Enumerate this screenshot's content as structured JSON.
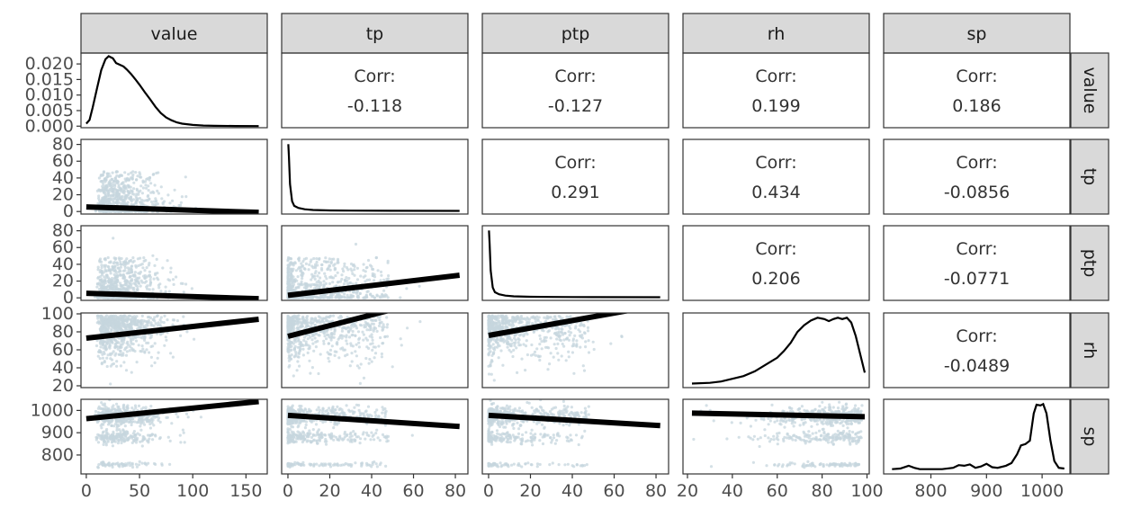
{
  "chart_data": {
    "type": "scatter-matrix",
    "variables": [
      "value",
      "tp",
      "ptp",
      "rh",
      "sp"
    ],
    "axes": {
      "value": {
        "range": [
          -5,
          170
        ],
        "ticks": [
          0,
          50,
          100,
          150
        ]
      },
      "tp": {
        "range": [
          -3,
          86
        ],
        "ticks": [
          0,
          20,
          40,
          60,
          80
        ]
      },
      "ptp": {
        "range": [
          -3,
          86
        ],
        "ticks": [
          0,
          20,
          40,
          60,
          80
        ]
      },
      "rh": {
        "range": [
          18,
          101
        ],
        "ticks": [
          20,
          40,
          60,
          80,
          100
        ]
      },
      "sp": {
        "range": [
          715,
          1050
        ],
        "ticks": [
          800,
          900,
          1000
        ]
      }
    },
    "density_y": {
      "value": {
        "range": [
          -0.0005,
          0.0235
        ],
        "ticks": [
          "0.000",
          "0.005",
          "0.010",
          "0.015",
          "0.020"
        ],
        "tick_values": [
          0,
          0.005,
          0.01,
          0.015,
          0.02
        ]
      }
    },
    "correlations": [
      {
        "row": "value",
        "col": "tp",
        "label": "Corr:",
        "value": "-0.118"
      },
      {
        "row": "value",
        "col": "ptp",
        "label": "Corr:",
        "value": "-0.127"
      },
      {
        "row": "value",
        "col": "rh",
        "label": "Corr:",
        "value": "0.199"
      },
      {
        "row": "value",
        "col": "sp",
        "label": "Corr:",
        "value": "0.186"
      },
      {
        "row": "tp",
        "col": "ptp",
        "label": "Corr:",
        "value": "0.291"
      },
      {
        "row": "tp",
        "col": "rh",
        "label": "Corr:",
        "value": "0.434"
      },
      {
        "row": "tp",
        "col": "sp",
        "label": "Corr:",
        "value": "-0.0856"
      },
      {
        "row": "ptp",
        "col": "rh",
        "label": "Corr:",
        "value": "0.206"
      },
      {
        "row": "ptp",
        "col": "sp",
        "label": "Corr:",
        "value": "-0.0771"
      },
      {
        "row": "rh",
        "col": "sp",
        "label": "Corr:",
        "value": "-0.0489"
      }
    ],
    "densities": {
      "value": [
        [
          0,
          0.0008
        ],
        [
          3,
          0.002
        ],
        [
          6,
          0.006
        ],
        [
          10,
          0.012
        ],
        [
          14,
          0.018
        ],
        [
          18,
          0.0215
        ],
        [
          21,
          0.0225
        ],
        [
          25,
          0.0218
        ],
        [
          28,
          0.0203
        ],
        [
          31,
          0.0198
        ],
        [
          35,
          0.0192
        ],
        [
          38,
          0.0182
        ],
        [
          42,
          0.0168
        ],
        [
          46,
          0.0151
        ],
        [
          50,
          0.0133
        ],
        [
          55,
          0.0109
        ],
        [
          60,
          0.0086
        ],
        [
          65,
          0.0062
        ],
        [
          70,
          0.0042
        ],
        [
          75,
          0.0028
        ],
        [
          80,
          0.0019
        ],
        [
          85,
          0.0012
        ],
        [
          90,
          0.0008
        ],
        [
          100,
          0.0004
        ],
        [
          110,
          0.0002
        ],
        [
          120,
          0.0001
        ],
        [
          140,
          5e-05
        ],
        [
          162,
          2e-05
        ]
      ],
      "tp": [
        [
          0.2,
          0.99
        ],
        [
          0.5,
          0.8
        ],
        [
          1,
          0.4
        ],
        [
          2,
          0.15
        ],
        [
          3,
          0.08
        ],
        [
          5,
          0.05
        ],
        [
          8,
          0.03
        ],
        [
          12,
          0.02
        ],
        [
          20,
          0.013
        ],
        [
          30,
          0.01
        ],
        [
          50,
          0.008
        ],
        [
          82,
          0.007
        ]
      ],
      "ptp": [
        [
          0.2,
          0.99
        ],
        [
          0.5,
          0.8
        ],
        [
          1,
          0.4
        ],
        [
          2,
          0.15
        ],
        [
          3,
          0.08
        ],
        [
          5,
          0.05
        ],
        [
          8,
          0.03
        ],
        [
          12,
          0.02
        ],
        [
          20,
          0.013
        ],
        [
          30,
          0.01
        ],
        [
          50,
          0.008
        ],
        [
          82,
          0.007
        ]
      ],
      "rh": [
        [
          22,
          0.02
        ],
        [
          30,
          0.03
        ],
        [
          35,
          0.05
        ],
        [
          40,
          0.09
        ],
        [
          45,
          0.13
        ],
        [
          50,
          0.2
        ],
        [
          55,
          0.3
        ],
        [
          60,
          0.4
        ],
        [
          63,
          0.5
        ],
        [
          66,
          0.62
        ],
        [
          69,
          0.78
        ],
        [
          72,
          0.88
        ],
        [
          75,
          0.95
        ],
        [
          78,
          0.99
        ],
        [
          81,
          0.97
        ],
        [
          83,
          0.94
        ],
        [
          85,
          0.97
        ],
        [
          87,
          0.99
        ],
        [
          89,
          0.97
        ],
        [
          91,
          0.99
        ],
        [
          93,
          0.92
        ],
        [
          95,
          0.72
        ],
        [
          97,
          0.45
        ],
        [
          99,
          0.18
        ]
      ],
      "sp": [
        [
          730,
          0.03
        ],
        [
          745,
          0.04
        ],
        [
          760,
          0.08
        ],
        [
          770,
          0.05
        ],
        [
          780,
          0.03
        ],
        [
          800,
          0.03
        ],
        [
          820,
          0.03
        ],
        [
          840,
          0.05
        ],
        [
          850,
          0.09
        ],
        [
          860,
          0.08
        ],
        [
          870,
          0.1
        ],
        [
          880,
          0.05
        ],
        [
          890,
          0.07
        ],
        [
          900,
          0.11
        ],
        [
          910,
          0.06
        ],
        [
          920,
          0.05
        ],
        [
          935,
          0.08
        ],
        [
          945,
          0.12
        ],
        [
          955,
          0.25
        ],
        [
          962,
          0.38
        ],
        [
          970,
          0.4
        ],
        [
          978,
          0.45
        ],
        [
          985,
          0.85
        ],
        [
          990,
          0.98
        ],
        [
          997,
          0.97
        ],
        [
          1002,
          0.99
        ],
        [
          1008,
          0.85
        ],
        [
          1015,
          0.45
        ],
        [
          1022,
          0.15
        ],
        [
          1030,
          0.05
        ],
        [
          1040,
          0.04
        ]
      ]
    },
    "regression_lines": [
      {
        "row": "tp",
        "col": "value",
        "x": [
          0,
          162
        ],
        "y": [
          5.5,
          -1
        ]
      },
      {
        "row": "ptp",
        "col": "value",
        "x": [
          0,
          162
        ],
        "y": [
          5.5,
          -1
        ]
      },
      {
        "row": "ptp",
        "col": "tp",
        "x": [
          0,
          82
        ],
        "y": [
          3,
          27
        ]
      },
      {
        "row": "rh",
        "col": "value",
        "x": [
          0,
          162
        ],
        "y": [
          73,
          94
        ]
      },
      {
        "row": "rh",
        "col": "tp",
        "x": [
          0,
          82
        ],
        "y": [
          75,
          124
        ]
      },
      {
        "row": "rh",
        "col": "ptp",
        "x": [
          0,
          82
        ],
        "y": [
          76,
          110
        ]
      },
      {
        "row": "sp",
        "col": "value",
        "x": [
          0,
          162
        ],
        "y": [
          963,
          1040
        ]
      },
      {
        "row": "sp",
        "col": "tp",
        "x": [
          0,
          82
        ],
        "y": [
          978,
          928
        ]
      },
      {
        "row": "sp",
        "col": "ptp",
        "x": [
          0,
          82
        ],
        "y": [
          978,
          932
        ]
      },
      {
        "row": "sp",
        "col": "rh",
        "x": [
          22,
          99
        ],
        "y": [
          988,
          972
        ]
      }
    ],
    "scatter_color": "#c5d5dd",
    "strip_color": "#d9d9d9",
    "line_color": "#000000"
  }
}
